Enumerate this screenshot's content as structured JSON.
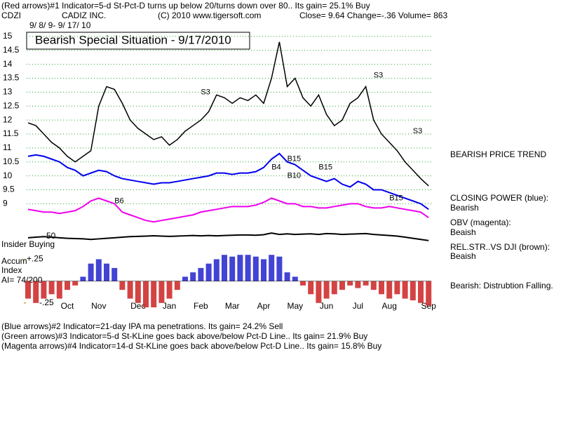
{
  "header": {
    "line1": "(Red arrows)#1 Indicator=5-d St-Pct-D turns up below 20/turns down over 80.. Its gain= 25.1% Buy",
    "symbol": "CDZI",
    "company": "CADIZ INC.",
    "copyright": "(C) 2010 www.tigersoft.com",
    "quote": "Close=  9.64  Change=-.36 Volume= 863",
    "dates": "9/ 8/ 9-  9/ 17/ 10"
  },
  "side": {
    "trend": "BEARISH PRICE TREND",
    "cp_label": "CLOSING POWER (blue):",
    "cp_state": "Bearish",
    "obv_label": "OBV (magenta):",
    "obv_state": "Beaish",
    "rs_label": "REL.STR..VS DJI (brown):",
    "rs_state": "Beaish",
    "accum_state": "Bearish: Distrubtion Falling."
  },
  "left": {
    "insider": "Insider Buying",
    "insider_level": "50",
    "accum1": "Accum",
    "accum2": "Index",
    "ai": "AI= 74/200"
  },
  "footer": [
    "(Blue arrows)#2 Indicator=21-day IPA ma penetrations. Its gain= 24.2% Sell",
    "(Green arrows)#3 Indicator=5-d St-KLine goes back above/below Pct-D Line.. Its gain= 21.9% Buy",
    "(Magenta arrows)#4 Indicator=14-d St-KLine goes back above/below Pct-D Line.. Its gain= 15.8% Buy"
  ],
  "chart_data": {
    "type": "line",
    "title": "Bearish Special Situation - 9/17/2010",
    "categories": [
      null,
      null,
      null,
      null,
      null,
      "Oct",
      null,
      null,
      null,
      "Nov",
      null,
      null,
      null,
      null,
      "Dec",
      null,
      null,
      null,
      "Jan",
      null,
      null,
      null,
      "Feb",
      null,
      null,
      null,
      "Mar",
      null,
      null,
      null,
      "Apr",
      null,
      null,
      null,
      "May",
      null,
      null,
      null,
      "Jun",
      null,
      null,
      null,
      "Jul",
      null,
      null,
      null,
      "Aug",
      null,
      null,
      null,
      null,
      "Sep"
    ],
    "ylim": [
      7.6,
      15.6
    ],
    "yticks": [
      9,
      9.5,
      10,
      10.5,
      11,
      11.5,
      12,
      12.5,
      13,
      13.5,
      14,
      14.5,
      15
    ],
    "grid": true,
    "y2lim": [
      -0.38,
      0.43
    ],
    "y2ticks": [
      {
        "value": 0.25,
        "label": "+.25"
      },
      {
        "value": -0.25,
        "label": "-.25"
      }
    ],
    "series": [
      {
        "color": "#000000",
        "values": [
          11.9,
          11.8,
          11.5,
          11.2,
          11.0,
          10.7,
          10.5,
          10.7,
          10.9,
          12.5,
          13.2,
          13.1,
          12.6,
          12.0,
          11.7,
          11.5,
          11.3,
          11.4,
          11.1,
          11.3,
          11.6,
          11.8,
          12.0,
          12.3,
          12.9,
          12.8,
          12.6,
          12.8,
          12.7,
          12.9,
          12.6,
          13.5,
          14.8,
          13.2,
          13.5,
          12.8,
          12.5,
          12.9,
          12.2,
          11.8,
          12.0,
          12.6,
          12.8,
          13.2,
          12.0,
          11.5,
          11.2,
          10.9,
          10.5,
          10.2,
          9.9,
          9.64
        ]
      },
      {
        "name": "CLOSING POWER (blue):",
        "color": "#0000ee",
        "values": [
          10.7,
          10.75,
          10.7,
          10.6,
          10.5,
          10.3,
          10.2,
          10.0,
          10.1,
          10.2,
          10.15,
          10.0,
          9.9,
          9.85,
          9.8,
          9.75,
          9.7,
          9.75,
          9.75,
          9.8,
          9.85,
          9.9,
          9.95,
          10.0,
          10.1,
          10.1,
          10.05,
          10.1,
          10.1,
          10.15,
          10.3,
          10.6,
          10.8,
          10.5,
          10.4,
          10.2,
          10.0,
          9.9,
          9.8,
          9.9,
          9.7,
          9.6,
          9.8,
          9.7,
          9.5,
          9.5,
          9.4,
          9.3,
          9.2,
          9.1,
          9.0,
          8.8
        ]
      },
      {
        "name": "OBV (magenta):",
        "color": "#ee00ee",
        "values": [
          8.8,
          8.75,
          8.7,
          8.7,
          8.65,
          8.7,
          8.75,
          8.9,
          9.1,
          9.2,
          9.1,
          9.0,
          8.7,
          8.6,
          8.5,
          8.4,
          8.35,
          8.4,
          8.45,
          8.5,
          8.55,
          8.6,
          8.7,
          8.75,
          8.8,
          8.85,
          8.9,
          8.9,
          8.9,
          8.95,
          9.05,
          9.2,
          9.1,
          9.0,
          9.0,
          8.9,
          8.9,
          8.85,
          8.85,
          8.9,
          8.95,
          9.0,
          9.0,
          8.9,
          8.85,
          8.85,
          8.9,
          8.85,
          8.8,
          8.75,
          8.7,
          8.5
        ]
      },
      {
        "name": "REL.STR..VS DJI (brown):",
        "color": "#000000",
        "values": [
          7.78,
          7.8,
          7.82,
          7.8,
          7.78,
          7.76,
          7.75,
          7.74,
          7.72,
          7.74,
          7.76,
          7.78,
          7.8,
          7.82,
          7.83,
          7.84,
          7.85,
          7.84,
          7.83,
          7.84,
          7.85,
          7.86,
          7.85,
          7.86,
          7.85,
          7.86,
          7.87,
          7.88,
          7.88,
          7.87,
          7.89,
          7.95,
          7.9,
          7.92,
          7.9,
          7.91,
          7.92,
          7.9,
          7.93,
          7.92,
          7.9,
          7.91,
          7.92,
          7.93,
          7.9,
          7.88,
          7.86,
          7.84,
          7.8,
          7.76,
          7.72,
          7.68
        ]
      },
      {
        "type": "bar",
        "axis": "y2",
        "color": "#2222cc",
        "negative_color": "#cc2222",
        "values": [
          -0.2,
          -0.25,
          -0.2,
          -0.15,
          -0.2,
          -0.1,
          -0.05,
          0.05,
          0.2,
          0.25,
          0.2,
          0.15,
          -0.1,
          -0.2,
          -0.25,
          -0.3,
          -0.3,
          -0.25,
          -0.2,
          -0.1,
          0.05,
          0.1,
          0.15,
          0.2,
          0.25,
          0.3,
          0.28,
          0.3,
          0.3,
          0.28,
          0.25,
          0.3,
          0.28,
          0.1,
          0.05,
          -0.05,
          -0.15,
          -0.25,
          -0.2,
          -0.15,
          -0.1,
          -0.05,
          -0.08,
          -0.05,
          -0.1,
          -0.15,
          -0.2,
          -0.15,
          -0.2,
          -0.22,
          -0.25,
          -0.28
        ]
      }
    ],
    "annotations": [
      {
        "text": "B6",
        "index": 11,
        "y": 9.1
      },
      {
        "text": "S3",
        "index": 22,
        "y": 13.0
      },
      {
        "text": "B4",
        "index": 31,
        "y": 10.3
      },
      {
        "text": "B15",
        "index": 33,
        "y": 10.6
      },
      {
        "text": "B10",
        "index": 33,
        "y": 10.0
      },
      {
        "text": "B15",
        "index": 37,
        "y": 10.3
      },
      {
        "text": "S3",
        "index": 44,
        "y": 13.6
      },
      {
        "text": "B15",
        "index": 46,
        "y": 9.2
      },
      {
        "text": "S3",
        "index": 49,
        "y": 11.6
      }
    ]
  }
}
